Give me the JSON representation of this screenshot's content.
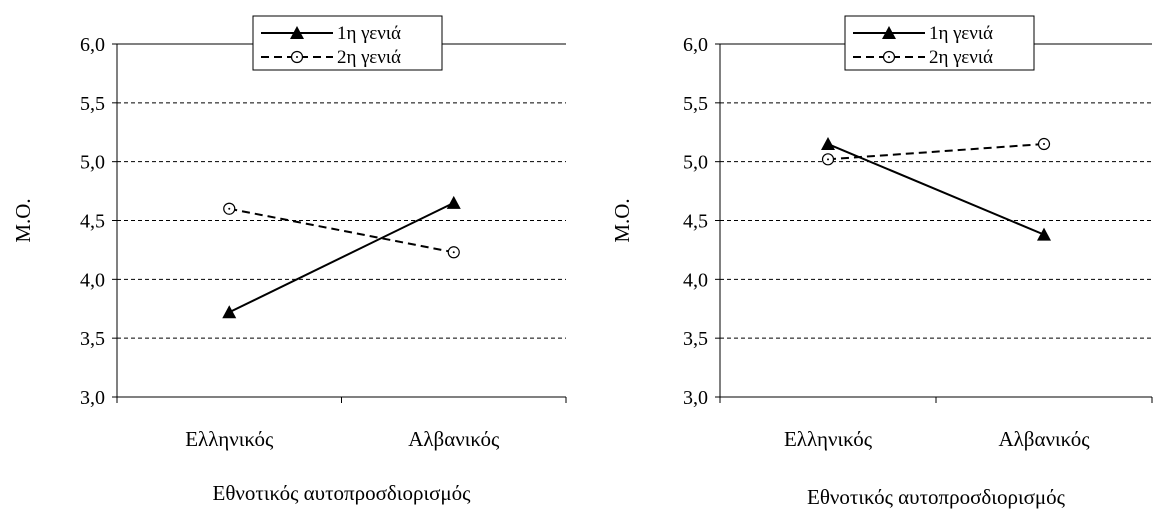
{
  "chart_data": [
    {
      "type": "line",
      "categories": [
        "Ελληνικός",
        "Αλβανικός"
      ],
      "series": [
        {
          "name": "1η γενιά",
          "values": [
            3.72,
            4.65
          ],
          "marker": "filled-triangle",
          "line": "solid"
        },
        {
          "name": "2η γενιά",
          "values": [
            4.6,
            4.23
          ],
          "marker": "open-circle-dot",
          "line": "dashed"
        }
      ],
      "xlabel": "Εθνοτικός αυτοπροσδιορισμός",
      "ylabel": "Μ.Ο.",
      "ylim": [
        3.0,
        6.0
      ],
      "yticks": [
        "3,0",
        "3,5",
        "4,0",
        "4,5",
        "5,0",
        "5,5",
        "6,0"
      ],
      "grid": "dashed horizontal",
      "legend": "top"
    },
    {
      "type": "line",
      "categories": [
        "Ελληνικός",
        "Αλβανικός"
      ],
      "series": [
        {
          "name": "1η γενιά",
          "values": [
            5.15,
            4.38
          ],
          "marker": "filled-triangle",
          "line": "solid"
        },
        {
          "name": "2η γενιά",
          "values": [
            5.02,
            5.15
          ],
          "marker": "open-circle-dot",
          "line": "dashed"
        }
      ],
      "xlabel": "Εθνοτικός αυτοπροσδιορισμός",
      "ylabel": "Μ.Ο.",
      "ylim": [
        3.0,
        6.0
      ],
      "yticks": [
        "3,0",
        "3,5",
        "4,0",
        "4,5",
        "5,0",
        "5,5",
        "6,0"
      ],
      "grid": "dashed horizontal",
      "legend": "top-right"
    }
  ]
}
